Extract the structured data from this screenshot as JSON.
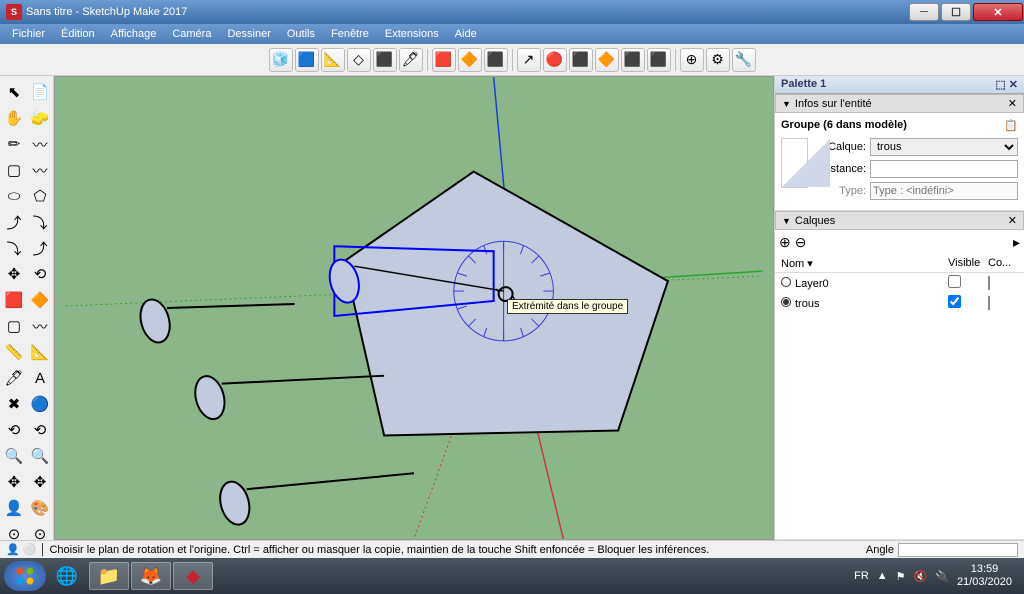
{
  "window": {
    "title": "Sans titre - SketchUp Make 2017",
    "app_icon_text": "S"
  },
  "menus": [
    "Fichier",
    "Édition",
    "Affichage",
    "Caméra",
    "Dessiner",
    "Outils",
    "Fenêtre",
    "Extensions",
    "Aide"
  ],
  "toolbar_top": {
    "icons": [
      "🧊",
      "🟦",
      "📐",
      "◇",
      "⬛",
      "🖊",
      "│",
      "🟥",
      "🔶",
      "⬛",
      "│",
      "↗",
      "🔴",
      "⬛",
      "🔶",
      "⬛",
      "⬛",
      "│",
      "⊕",
      "⚙",
      "🔧"
    ]
  },
  "left_tools": {
    "icons": [
      "⬉",
      "📄",
      "✋",
      "🧽",
      "✏",
      "〰",
      "▢",
      "〰",
      "⬭",
      "⬠",
      "⤴",
      "⤵",
      "⤵",
      "⤴",
      "✥",
      "⟲",
      "🟥",
      "🔶",
      "▢",
      "〰",
      "📏",
      "📐",
      "🖊",
      "A",
      "✖",
      "🔵",
      "⟲",
      "⟲",
      "🔍",
      "🔍",
      "✥",
      "✥",
      "👤",
      "🎨",
      "⊙",
      "⊙"
    ]
  },
  "panels": {
    "palette_title": "Palette 1",
    "entity": {
      "header": "Infos sur l'entité",
      "group_label": "Groupe (6 dans modèle)",
      "layer_label": "Calque:",
      "layer_value": "trous",
      "instance_label": "Instance:",
      "instance_value": "",
      "type_label": "Type:",
      "type_placeholder": "Type : <indéfini>"
    },
    "layers": {
      "header": "Calques",
      "col_name": "Nom",
      "col_visible": "Visible",
      "col_color": "Co...",
      "rows": [
        {
          "name": "Layer0",
          "selected": false,
          "visible": false,
          "color": "#f4a0a0"
        },
        {
          "name": "trous",
          "selected": true,
          "visible": true,
          "color": "#8a7a4a"
        }
      ]
    }
  },
  "viewport": {
    "tooltip": "Extrémité dans le groupe",
    "bg_color": "#8ab68a",
    "pentagon_fill": "#c2cbdd",
    "pentagon_stroke": "#000000",
    "selection_color": "#0000ff",
    "axis_blue": "#1a3fd6",
    "axis_green": "#2aa82a",
    "axis_red": "#c83a3a",
    "protractor_color": "#3a3ae0"
  },
  "status": {
    "hint": "Choisir le plan de rotation et l'origine. Ctrl = afficher ou masquer la copie, maintien de la touche Shift enfoncée = Bloquer les inférences.",
    "angle_label": "Angle"
  },
  "taskbar": {
    "lang": "FR",
    "time": "13:59",
    "date": "21/03/2020"
  }
}
